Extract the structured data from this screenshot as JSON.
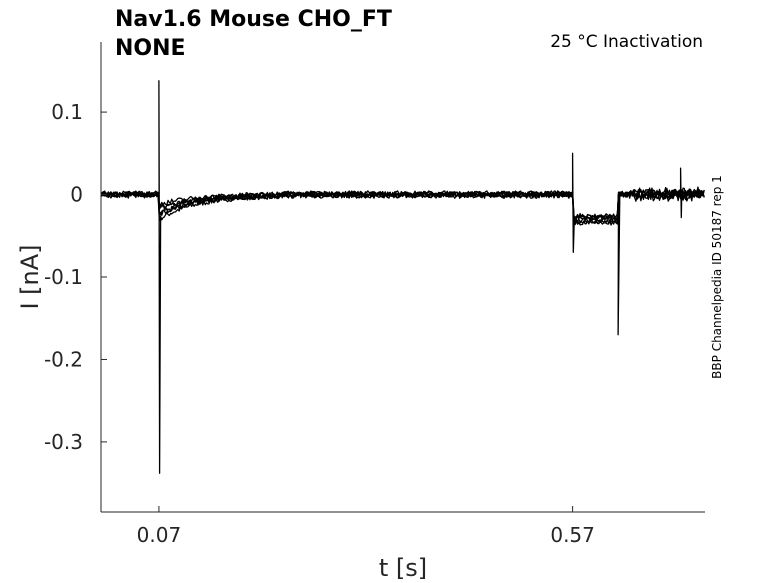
{
  "chart_data": {
    "type": "line",
    "title": "Nav1.6  Mouse  CHO_FT",
    "subtitle": "NONE",
    "condition": "25 °C  Inactivation",
    "side_note": "BBP Channelpedia ID 50187 rep 1",
    "xlabel": "t [s]",
    "ylabel": "I [nA]",
    "xlim": [
      0.0,
      0.73
    ],
    "ylim": [
      -0.385,
      0.185
    ],
    "xticks": [
      0.07,
      0.57
    ],
    "xtick_labels": [
      "0.07",
      "0.57"
    ],
    "yticks": [
      0.1,
      0.0,
      -0.1,
      -0.2,
      -0.3
    ],
    "ytick_labels": [
      "0.1",
      "0",
      "-0.1",
      "-0.2",
      "-0.3"
    ],
    "grid": false,
    "legend": "none",
    "line_color": "#000000",
    "series_shape": {
      "baseline": 0.0,
      "pulse1_time": 0.07,
      "pulse1_peak": 0.138,
      "pulse1_trough": -0.338,
      "pulse2_time": 0.57,
      "pulse2_peak": 0.05,
      "pulse2_trough": -0.07,
      "step_level": -0.03,
      "step_end": 0.625,
      "step_end_trough": -0.17,
      "tail_spikes": [
        0.04,
        0.042,
        0.032,
        0.028,
        0.02
      ]
    },
    "series": [
      {
        "values_note": "trace family",
        "offset": 0.0,
        "tail_dip": -0.03
      },
      {
        "offset": 0.002,
        "tail_dip": -0.025
      },
      {
        "offset": -0.002,
        "tail_dip": -0.022
      },
      {
        "offset": 0.003,
        "tail_dip": -0.018
      },
      {
        "offset": -0.003,
        "tail_dip": -0.015
      },
      {
        "offset": 0.001,
        "tail_dip": -0.012
      }
    ]
  }
}
